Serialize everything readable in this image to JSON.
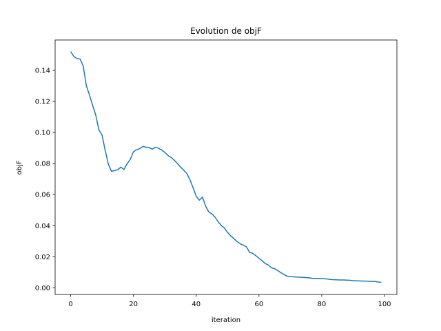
{
  "chart_data": {
    "type": "line",
    "title": "Evolution de objF",
    "xlabel": "iteration",
    "ylabel": "objF",
    "xlim": [
      -4.95,
      103.95
    ],
    "ylim": [
      -0.0043,
      0.1596
    ],
    "x_ticks": [
      0,
      20,
      40,
      60,
      80,
      100
    ],
    "y_ticks": [
      0.0,
      0.02,
      0.04,
      0.06,
      0.08,
      0.1,
      0.12,
      0.14
    ],
    "y_tick_labels": [
      "0.00",
      "0.02",
      "0.04",
      "0.06",
      "0.08",
      "0.10",
      "0.12",
      "0.14"
    ],
    "grid": false,
    "line_color": "#1f77b4",
    "series": [
      {
        "x": [
          0,
          1,
          2,
          3,
          4,
          5,
          6,
          7,
          8,
          9,
          10,
          11,
          12,
          13,
          14,
          15,
          16,
          17,
          18,
          19,
          20,
          21,
          22,
          23,
          24,
          25,
          26,
          27,
          28,
          29,
          30,
          31,
          32,
          33,
          34,
          35,
          36,
          37,
          38,
          39,
          40,
          41,
          42,
          43,
          44,
          45,
          46,
          47,
          48,
          49,
          50,
          51,
          52,
          53,
          54,
          55,
          56,
          57,
          58,
          59,
          60,
          61,
          62,
          63,
          64,
          65,
          66,
          67,
          68,
          69,
          70,
          71,
          72,
          73,
          74,
          75,
          76,
          77,
          78,
          79,
          80,
          81,
          82,
          83,
          84,
          85,
          86,
          87,
          88,
          89,
          90,
          91,
          92,
          93,
          94,
          95,
          96,
          97,
          98,
          99
        ],
        "values": [
          0.1522,
          0.149,
          0.1477,
          0.1473,
          0.1428,
          0.1302,
          0.1241,
          0.1175,
          0.1112,
          0.1017,
          0.0984,
          0.0885,
          0.0796,
          0.075,
          0.0755,
          0.0761,
          0.0777,
          0.0762,
          0.0799,
          0.0827,
          0.0876,
          0.0889,
          0.0896,
          0.091,
          0.0906,
          0.0903,
          0.0893,
          0.0905,
          0.0899,
          0.0888,
          0.0872,
          0.0852,
          0.084,
          0.0822,
          0.0801,
          0.0778,
          0.0758,
          0.0737,
          0.0696,
          0.0645,
          0.059,
          0.0564,
          0.0584,
          0.0526,
          0.0489,
          0.0476,
          0.0455,
          0.0425,
          0.0401,
          0.0385,
          0.0356,
          0.0334,
          0.0317,
          0.0298,
          0.0284,
          0.0275,
          0.0264,
          0.0228,
          0.0222,
          0.0207,
          0.019,
          0.0174,
          0.0156,
          0.0146,
          0.0129,
          0.0123,
          0.0111,
          0.0097,
          0.0085,
          0.0075,
          0.0072,
          0.0071,
          0.0069,
          0.0068,
          0.0067,
          0.0066,
          0.0064,
          0.0061,
          0.006,
          0.006,
          0.0059,
          0.0058,
          0.0056,
          0.0053,
          0.0052,
          0.0051,
          0.005,
          0.005,
          0.0049,
          0.0048,
          0.0046,
          0.0045,
          0.0044,
          0.0043,
          0.0043,
          0.0042,
          0.0041,
          0.0041,
          0.0037,
          0.0035
        ]
      }
    ]
  }
}
